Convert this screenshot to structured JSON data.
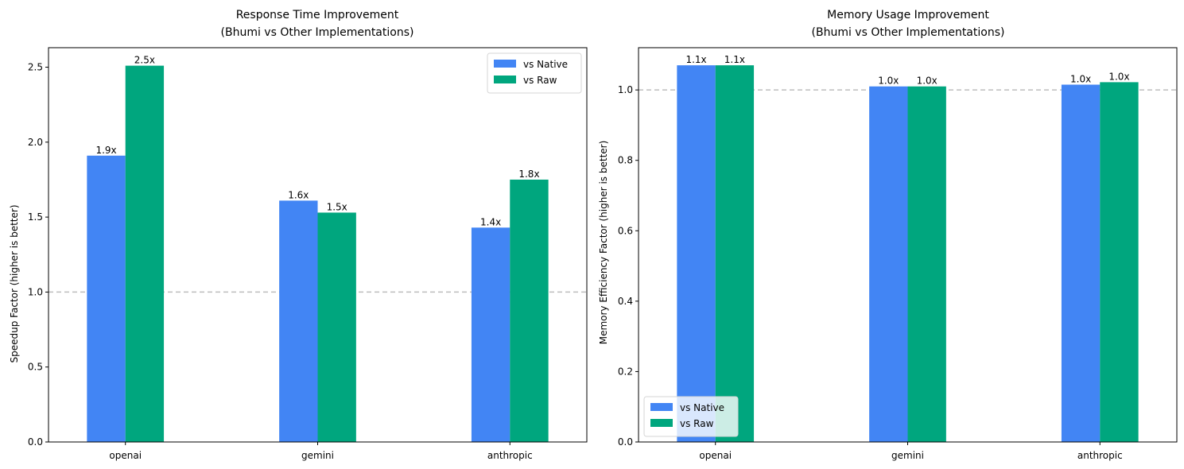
{
  "chart_data": [
    {
      "type": "bar",
      "title": "Response Time Improvement",
      "subtitle": "(Bhumi vs Other Implementations)",
      "xlabel": "",
      "ylabel": "Speedup Factor (higher is better)",
      "categories": [
        "openai",
        "gemini",
        "anthropic"
      ],
      "series": [
        {
          "name": "vs Native",
          "color": "#4285f4",
          "values": [
            1.91,
            1.61,
            1.43
          ],
          "labels": [
            "1.9x",
            "1.6x",
            "1.4x"
          ]
        },
        {
          "name": "vs Raw",
          "color": "#00a67e",
          "values": [
            2.51,
            1.53,
            1.75
          ],
          "labels": [
            "2.5x",
            "1.5x",
            "1.8x"
          ]
        }
      ],
      "ylim": [
        0,
        2.63
      ],
      "yticks": [
        0.0,
        0.5,
        1.0,
        1.5,
        2.0,
        2.5
      ],
      "ytick_labels": [
        "0.0",
        "0.5",
        "1.0",
        "1.5",
        "2.0",
        "2.5"
      ],
      "reference_line": 1.0,
      "legend": "top-right",
      "grid": false
    },
    {
      "type": "bar",
      "title": "Memory Usage Improvement",
      "subtitle": "(Bhumi vs Other Implementations)",
      "xlabel": "",
      "ylabel": "Memory Efficiency Factor (higher is better)",
      "categories": [
        "openai",
        "gemini",
        "anthropic"
      ],
      "series": [
        {
          "name": "vs Native",
          "color": "#4285f4",
          "values": [
            1.07,
            1.01,
            1.015
          ],
          "labels": [
            "1.1x",
            "1.0x",
            "1.0x"
          ]
        },
        {
          "name": "vs Raw",
          "color": "#00a67e",
          "values": [
            1.07,
            1.01,
            1.022
          ],
          "labels": [
            "1.1x",
            "1.0x",
            "1.0x"
          ]
        }
      ],
      "ylim": [
        0,
        1.12
      ],
      "yticks": [
        0.0,
        0.2,
        0.4,
        0.6,
        0.8,
        1.0
      ],
      "ytick_labels": [
        "0.0",
        "0.2",
        "0.4",
        "0.6",
        "0.8",
        "1.0"
      ],
      "reference_line": 1.0,
      "legend": "bottom-left",
      "grid": false
    }
  ]
}
